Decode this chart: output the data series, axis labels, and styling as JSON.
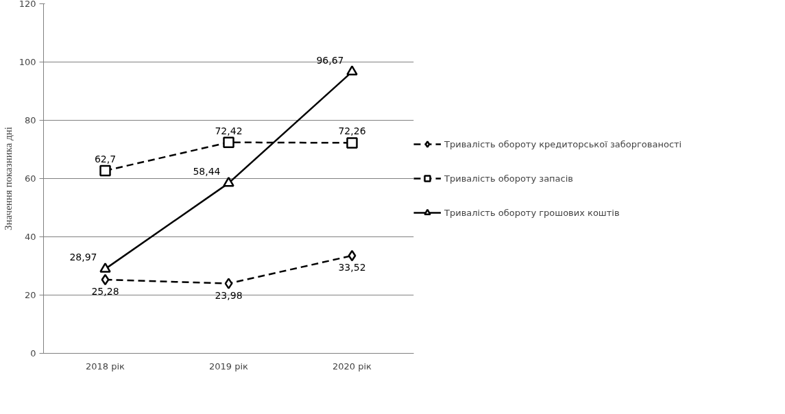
{
  "chart_data": {
    "type": "line",
    "ylabel": "Значення показника дні",
    "categories": [
      "2018 рік",
      "2019 рік",
      "2020 рік"
    ],
    "ylim": [
      0,
      120
    ],
    "yticks": [
      0,
      20,
      40,
      60,
      80,
      100,
      120
    ],
    "grid": "y",
    "legend": "right",
    "series": [
      {
        "name": "Тривалість обороту кредиторської заборгованості",
        "color": "#000000",
        "values": [
          25.28,
          23.98,
          33.52
        ],
        "value_labels": [
          "25,28",
          "23,98",
          "33,52"
        ],
        "marker": "diamond",
        "line_style": "dashed"
      },
      {
        "name": "Тривалість обороту запасів",
        "color": "#000000",
        "values": [
          62.7,
          72.42,
          72.26
        ],
        "value_labels": [
          "62,7",
          "72,42",
          "72,26"
        ],
        "marker": "square",
        "line_style": "dashed"
      },
      {
        "name": "Тривалість обороту грошових коштів",
        "color": "#000000",
        "values": [
          28.97,
          58.44,
          96.67
        ],
        "value_labels": [
          "28,97",
          "58,44",
          "96,67"
        ],
        "marker": "triangle",
        "line_style": "solid"
      }
    ]
  }
}
